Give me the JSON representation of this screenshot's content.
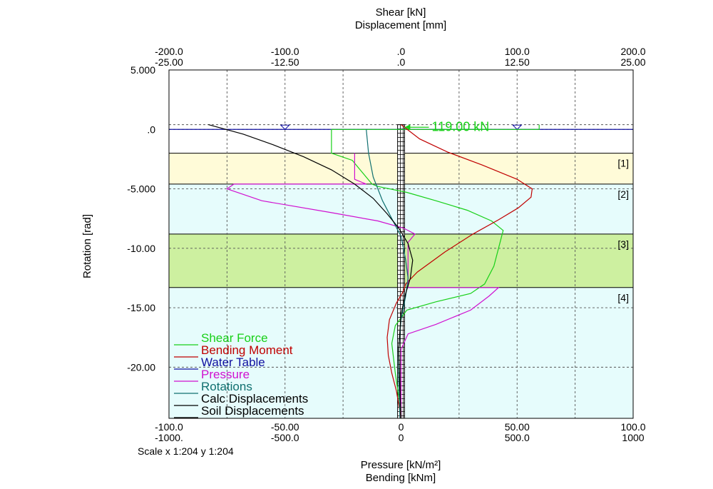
{
  "chart_data": {
    "type": "line",
    "title": "",
    "top_axis": {
      "label_line1": "Shear [kN]",
      "label_line2": "Displacement [mm]",
      "shear_ticks": [
        "-200.0",
        "-100.0",
        ".0",
        "100.0",
        "200.0"
      ],
      "disp_ticks": [
        "-25.00",
        "-12.50",
        ".0",
        "12.50",
        "25.00"
      ],
      "shear_range": [
        -200,
        200
      ],
      "disp_range": [
        -25,
        25
      ]
    },
    "bottom_axis": {
      "label_line1": "Pressure [kN/m²]",
      "label_line2": "Bending [kNm]",
      "pressure_ticks": [
        "-100.0",
        "-50.00",
        "0",
        "50.00",
        "100.0"
      ],
      "bending_ticks": [
        "-1000.",
        "-500.0",
        "0",
        "500.0",
        "1000"
      ],
      "pressure_range": [
        -100,
        100
      ],
      "bending_range": [
        -1000,
        1000
      ]
    },
    "y_axis": {
      "label": "Rotation [rad]",
      "ticks": [
        5.0,
        0.0,
        -5.0,
        -10.0,
        -15.0,
        -20.0
      ],
      "tick_labels": [
        "5.000",
        ".0",
        "-5.000",
        "-10.00",
        "-15.00",
        "-20.00"
      ],
      "range": [
        -24.3,
        5.0
      ]
    },
    "scale_text": "Scale x 1:204  y 1:204",
    "grid": true,
    "water_table_level": 0.0,
    "wall": {
      "top": 0.4,
      "bottom": -24.3,
      "half_width_pressure": 1.5
    },
    "layers": [
      {
        "label": "[1]",
        "top": -2.0,
        "bottom": -4.6,
        "color": "#fffbd8"
      },
      {
        "label": "[2]",
        "top": -4.6,
        "bottom": -8.8,
        "color": "#e6fcfc"
      },
      {
        "label": "[3]",
        "top": -8.8,
        "bottom": -13.3,
        "color": "#cdf0a0"
      },
      {
        "label": "[4]",
        "top": -13.3,
        "bottom": -24.3,
        "color": "#e6fcfc"
      }
    ],
    "annotation": {
      "text": "119.00 kN",
      "value": 119.0,
      "depth": 0.0
    },
    "legend": {
      "placement": "bottom-left",
      "entries": [
        {
          "label": "Shear Force",
          "color": "#18d018"
        },
        {
          "label": "Bending Moment",
          "color": "#c00000"
        },
        {
          "label": "Water Table",
          "color": "#1010a0"
        },
        {
          "label": "Pressure",
          "color": "#d010d0"
        },
        {
          "label": "Rotations",
          "color": "#107070"
        },
        {
          "label": "Calc Displacements",
          "color": "#000000"
        },
        {
          "label": "Soil Displacements",
          "color": "#000000"
        }
      ]
    },
    "series": [
      {
        "name": "Shear Force",
        "x_unit": "kN",
        "color": "#18d018",
        "points": [
          [
            119,
            0.4
          ],
          [
            119,
            0.0
          ],
          [
            -60,
            0.0
          ],
          [
            -60,
            -2.0
          ],
          [
            -42,
            -2.6
          ],
          [
            -25,
            -4.6
          ],
          [
            -20,
            -4.8
          ],
          [
            5,
            -5.3
          ],
          [
            30,
            -6.0
          ],
          [
            57,
            -6.8
          ],
          [
            78,
            -7.7
          ],
          [
            88,
            -8.5
          ],
          [
            84,
            -10.0
          ],
          [
            80,
            -11.5
          ],
          [
            72,
            -13.0
          ],
          [
            60,
            -13.8
          ],
          [
            30,
            -14.5
          ],
          [
            5,
            -15.2
          ],
          [
            -5,
            -16.5
          ],
          [
            -8,
            -18.0
          ],
          [
            -5,
            -20.5
          ],
          [
            -2,
            -22.5
          ],
          [
            0,
            -24.3
          ]
        ]
      },
      {
        "name": "Bending Moment",
        "x_unit": "kNm",
        "color": "#c00000",
        "points": [
          [
            0,
            0.4
          ],
          [
            80,
            -0.8
          ],
          [
            200,
            -1.9
          ],
          [
            350,
            -3.0
          ],
          [
            500,
            -4.2
          ],
          [
            565,
            -5.0
          ],
          [
            560,
            -5.7
          ],
          [
            505,
            -6.6
          ],
          [
            420,
            -7.6
          ],
          [
            310,
            -8.8
          ],
          [
            190,
            -10.3
          ],
          [
            70,
            -12.0
          ],
          [
            20,
            -13.0
          ],
          [
            10,
            -13.6
          ],
          [
            -20,
            -14.6
          ],
          [
            -50,
            -16.0
          ],
          [
            -60,
            -17.5
          ],
          [
            -55,
            -19.0
          ],
          [
            -40,
            -20.5
          ],
          [
            -20,
            -22.0
          ],
          [
            0,
            -24.3
          ]
        ]
      },
      {
        "name": "Pressure",
        "x_unit": "kN/m²",
        "color": "#d010d0",
        "points": [
          [
            -20,
            -2.0
          ],
          [
            -20,
            -4.2
          ],
          [
            -15,
            -4.6
          ],
          [
            -72,
            -4.6
          ],
          [
            -75,
            -5.0
          ],
          [
            -60,
            -6.0
          ],
          [
            -30,
            -7.0
          ],
          [
            -10,
            -7.7
          ],
          [
            1,
            -8.3
          ],
          [
            6,
            -8.8
          ],
          [
            3,
            -9.5
          ],
          [
            3,
            -13.3
          ],
          [
            42,
            -13.3
          ],
          [
            38,
            -14.0
          ],
          [
            30,
            -15.2
          ],
          [
            15,
            -16.4
          ],
          [
            3,
            -17.2
          ],
          [
            0,
            -18.5
          ],
          [
            0,
            -24.3
          ]
        ]
      },
      {
        "name": "Rotations",
        "x_unit": "kN/m²",
        "color": "#107070",
        "points": [
          [
            -15,
            0.0
          ],
          [
            -14,
            -2.0
          ],
          [
            -12,
            -4.0
          ],
          [
            -8,
            -6.0
          ],
          [
            -4,
            -7.5
          ],
          [
            0,
            -9.0
          ],
          [
            2,
            -11.0
          ],
          [
            3,
            -12.5
          ],
          [
            2,
            -14.0
          ],
          [
            0,
            -16.0
          ],
          [
            -1,
            -18.5
          ],
          [
            -1,
            -21.0
          ],
          [
            -0.5,
            -24.3
          ]
        ]
      },
      {
        "name": "Calc Displacements",
        "x_unit": "kN/m²",
        "color": "#000000",
        "points": [
          [
            -83,
            0.4
          ],
          [
            -68,
            -0.4
          ],
          [
            -55,
            -1.3
          ],
          [
            -42,
            -2.3
          ],
          [
            -30,
            -3.4
          ],
          [
            -20,
            -4.6
          ],
          [
            -12,
            -5.8
          ],
          [
            -6,
            -7.1
          ],
          [
            -1,
            -8.3
          ],
          [
            3,
            -9.6
          ],
          [
            5,
            -11.0
          ],
          [
            4,
            -12.5
          ],
          [
            2,
            -13.8
          ],
          [
            0,
            -15.5
          ],
          [
            -1,
            -18.5
          ],
          [
            -0.5,
            -22.0
          ],
          [
            0,
            -24.3
          ]
        ]
      }
    ]
  }
}
